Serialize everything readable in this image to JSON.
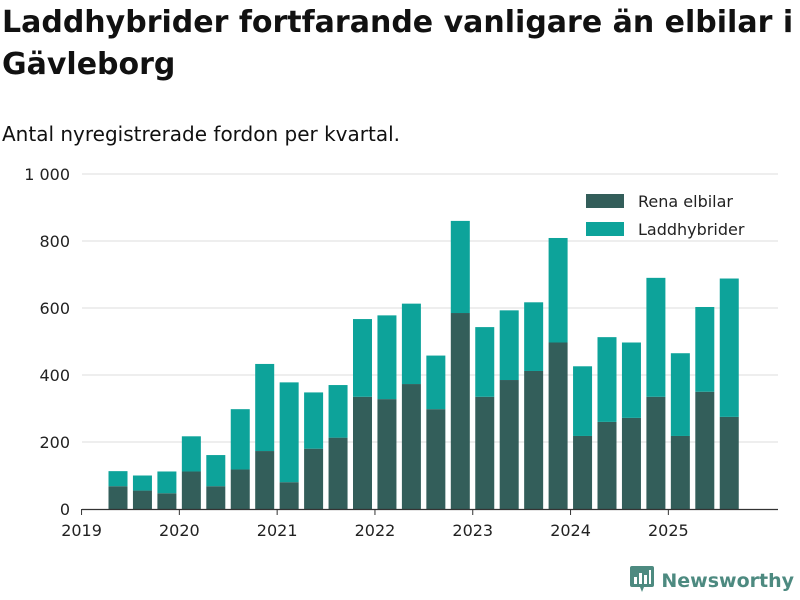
{
  "header": {
    "title": "Laddhybrider fortfarande vanligare än elbilar i Gävleborg",
    "subtitle": "Antal nyregistrerade fordon per kvartal."
  },
  "branding": {
    "logo_text": "Newsworthy"
  },
  "colors": {
    "elbilar": "#335e5a",
    "laddhybrider": "#0da39a",
    "grid": "#dddddd",
    "axis": "#333333",
    "brand": "#4d8a80"
  },
  "chart_data": {
    "type": "bar",
    "stacked": true,
    "title": "Laddhybrider fortfarande vanligare än elbilar i Gävleborg",
    "subtitle": "Antal nyregistrerade fordon per kvartal.",
    "xlabel": "",
    "ylabel": "",
    "ylim": [
      0,
      1000
    ],
    "yticks": [
      0,
      200,
      400,
      600,
      800,
      1000
    ],
    "ytick_labels": [
      "0",
      "200",
      "400",
      "600",
      "800",
      "1 000"
    ],
    "x_tick_labels": [
      "2019",
      "2020",
      "2021",
      "2022",
      "2023",
      "2024",
      "2025"
    ],
    "x_tick_year_start": 2019,
    "legend_position": "top-right",
    "grid": true,
    "categories": [
      "2019 Q2",
      "2019 Q3",
      "2019 Q4",
      "2020 Q1",
      "2020 Q2",
      "2020 Q3",
      "2020 Q4",
      "2021 Q1",
      "2021 Q2",
      "2021 Q3",
      "2021 Q4",
      "2022 Q1",
      "2022 Q2",
      "2022 Q3",
      "2022 Q4",
      "2023 Q1",
      "2023 Q2",
      "2023 Q3",
      "2023 Q4",
      "2024 Q1",
      "2024 Q2",
      "2024 Q3",
      "2024 Q4",
      "2025 Q1",
      "2025 Q2",
      "2025 Q3"
    ],
    "series": [
      {
        "name": "Rena elbilar",
        "values": [
          68,
          55,
          47,
          112,
          68,
          118,
          173,
          80,
          180,
          213,
          335,
          328,
          373,
          298,
          585,
          335,
          385,
          412,
          497,
          218,
          260,
          272,
          335,
          218,
          350,
          275
        ]
      },
      {
        "name": "Laddhybrider",
        "values": [
          45,
          45,
          65,
          105,
          93,
          180,
          260,
          298,
          168,
          157,
          232,
          250,
          240,
          160,
          275,
          208,
          208,
          205,
          312,
          208,
          253,
          225,
          355,
          247,
          253,
          413
        ]
      }
    ]
  }
}
